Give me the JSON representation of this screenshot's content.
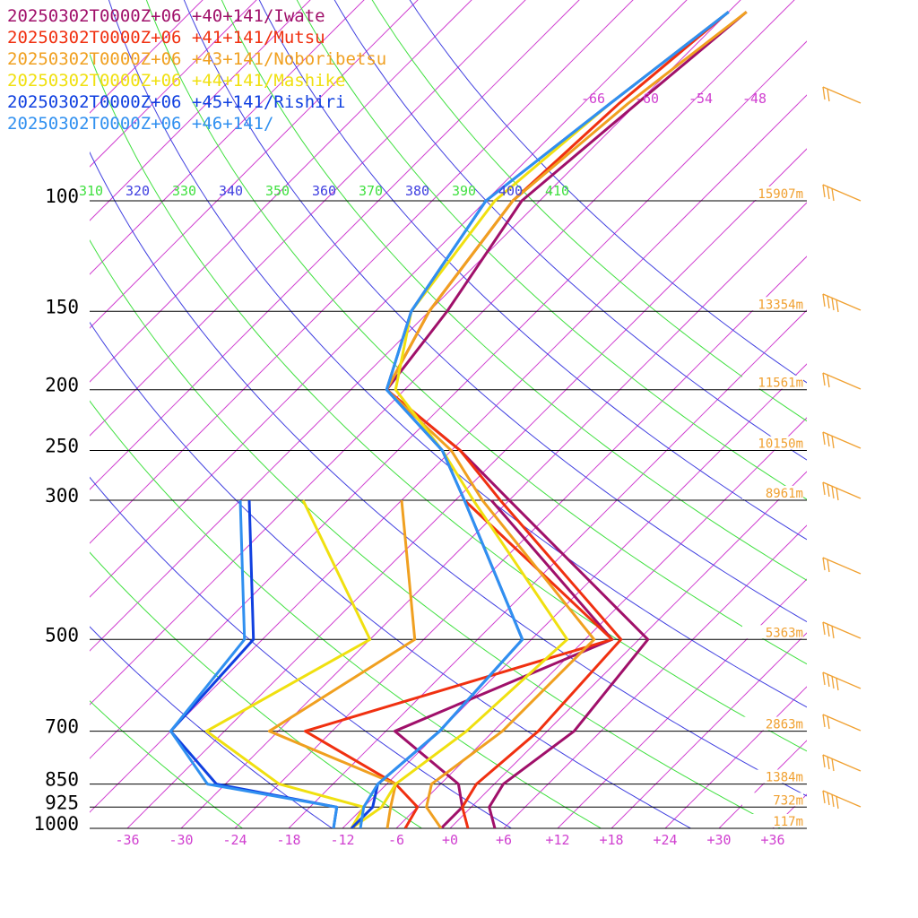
{
  "legend": [
    {
      "text": "20250302T0000Z+06 +40+141/Iwate",
      "color": "#a0106a"
    },
    {
      "text": "20250302T0000Z+06 +41+141/Mutsu",
      "color": "#f03010"
    },
    {
      "text": "20250302T0000Z+06 +43+141/Noboribetsu",
      "color": "#f0a020"
    },
    {
      "text": "20250302T0000Z+06 +44+141/Mashike",
      "color": "#f0e010"
    },
    {
      "text": "20250302T0000Z+06 +45+141/Rishiri",
      "color": "#1040e0"
    },
    {
      "text": "20250302T0000Z+06 +46+141/",
      "color": "#3090f0"
    }
  ],
  "pressure_ticks": [
    "100",
    "150",
    "200",
    "250",
    "300",
    "500",
    "700",
    "850",
    "925",
    "1000"
  ],
  "temperature_ticks": [
    "-36",
    "-30",
    "-24",
    "-18",
    "-12",
    "-6",
    "+0",
    "+6",
    "+12",
    "+18",
    "+24",
    "+30",
    "+36"
  ],
  "isotherm_labels_top": [
    "-66",
    "-60",
    "-54",
    "-48"
  ],
  "theta_labels": [
    "310",
    "320",
    "330",
    "340",
    "350",
    "360",
    "370",
    "380",
    "390",
    "400",
    "410"
  ],
  "height_labels": [
    {
      "p": 100,
      "text": "15907m"
    },
    {
      "p": 150,
      "text": "13354m"
    },
    {
      "p": 200,
      "text": "11561m"
    },
    {
      "p": 250,
      "text": "10150m"
    },
    {
      "p": 300,
      "text": "8961m"
    },
    {
      "p": 500,
      "text": "5363m"
    },
    {
      "p": 700,
      "text": "2863m"
    },
    {
      "p": 850,
      "text": "1384m"
    },
    {
      "p": 925,
      "text": "732m"
    },
    {
      "p": 1000,
      "text": "117m"
    }
  ],
  "colors": {
    "isotherm": "#d040d0",
    "theta_green": "#40e040",
    "theta_blue": "#4040e0",
    "height_label": "#f0a030",
    "wind_barb": "#f0a030"
  },
  "chart_data": {
    "type": "line",
    "title": "",
    "xlabel": "",
    "ylabel": "",
    "x_axis": "temperature (deg C, skewed)",
    "y_axis": "pressure (hPa, log)",
    "xlim": [
      -40,
      40
    ],
    "ylim": [
      1000,
      100
    ],
    "pressure_levels": [
      1000,
      925,
      850,
      700,
      500,
      300,
      250,
      200,
      150,
      100
    ],
    "series": [
      {
        "name": "20250302T0000Z+06 +40+141/Iwate",
        "color": "#a0106a",
        "temperature": [
          [
            1000,
            5
          ],
          [
            925,
            2
          ],
          [
            850,
            1
          ],
          [
            700,
            3
          ],
          [
            500,
            1
          ],
          [
            300,
            -30
          ],
          [
            250,
            -41
          ],
          [
            200,
            -56
          ],
          [
            150,
            -58
          ],
          [
            100,
            -62
          ],
          [
            70,
            -60
          ],
          [
            50,
            -58
          ]
        ],
        "dewpoint": [
          [
            1000,
            -1
          ],
          [
            925,
            -1
          ],
          [
            850,
            -4
          ],
          [
            700,
            -17
          ],
          [
            500,
            -3
          ],
          [
            300,
            -32
          ]
        ]
      },
      {
        "name": "20250302T0000Z+06 +41+141/Mutsu",
        "color": "#f03010",
        "temperature": [
          [
            1000,
            2
          ],
          [
            925,
            -1
          ],
          [
            850,
            -2
          ],
          [
            700,
            -1
          ],
          [
            500,
            -2
          ],
          [
            300,
            -31
          ],
          [
            250,
            -41
          ],
          [
            200,
            -56
          ],
          [
            150,
            -60
          ],
          [
            100,
            -63
          ],
          [
            70,
            -62
          ],
          [
            50,
            -60
          ]
        ],
        "dewpoint": [
          [
            1000,
            -5
          ],
          [
            925,
            -6
          ],
          [
            850,
            -11
          ],
          [
            700,
            -27
          ],
          [
            500,
            -3
          ],
          [
            300,
            -35
          ]
        ]
      },
      {
        "name": "20250302T0000Z+06 +43+141/Noboribetsu",
        "color": "#f0a020",
        "temperature": [
          [
            1000,
            -1
          ],
          [
            925,
            -5
          ],
          [
            850,
            -7
          ],
          [
            700,
            -5
          ],
          [
            500,
            -5
          ],
          [
            300,
            -33
          ],
          [
            250,
            -42
          ],
          [
            200,
            -56
          ],
          [
            150,
            -60
          ],
          [
            100,
            -63
          ],
          [
            70,
            -61
          ],
          [
            50,
            -58
          ]
        ],
        "dewpoint": [
          [
            1000,
            -7
          ],
          [
            925,
            -9
          ],
          [
            850,
            -11
          ],
          [
            700,
            -31
          ],
          [
            500,
            -25
          ],
          [
            300,
            -42
          ]
        ]
      },
      {
        "name": "20250302T0000Z+06 +44+141/Mashike",
        "color": "#f0e010",
        "temperature": [
          [
            1000,
            -11
          ],
          [
            925,
            -10
          ],
          [
            850,
            -11
          ],
          [
            700,
            -9
          ],
          [
            500,
            -8
          ],
          [
            300,
            -34
          ],
          [
            250,
            -43
          ],
          [
            200,
            -55
          ],
          [
            150,
            -62
          ],
          [
            100,
            -65
          ],
          [
            70,
            -63
          ],
          [
            50,
            -60
          ]
        ],
        "dewpoint": [
          [
            1000,
            -11
          ],
          [
            925,
            -12
          ],
          [
            850,
            -24
          ],
          [
            700,
            -38
          ],
          [
            500,
            -30
          ],
          [
            300,
            -53
          ]
        ]
      },
      {
        "name": "20250302T0000Z+06 +45+141/Rishiri",
        "color": "#1040e0",
        "temperature": [
          [
            1000,
            -11
          ],
          [
            925,
            -11
          ],
          [
            850,
            -13
          ],
          [
            700,
            -12
          ],
          [
            500,
            -13
          ],
          [
            300,
            -35
          ],
          [
            250,
            -43
          ],
          [
            200,
            -56
          ],
          [
            150,
            -62
          ],
          [
            100,
            -66
          ],
          [
            70,
            -63
          ],
          [
            50,
            -60
          ]
        ],
        "dewpoint": [
          [
            1000,
            -13
          ],
          [
            925,
            -15
          ],
          [
            850,
            -31
          ],
          [
            700,
            -42
          ],
          [
            500,
            -43
          ],
          [
            300,
            -59
          ]
        ]
      },
      {
        "name": "20250302T0000Z+06 +46+141/",
        "color": "#3090f0",
        "temperature": [
          [
            1000,
            -10
          ],
          [
            925,
            -12
          ],
          [
            850,
            -13
          ],
          [
            700,
            -12
          ],
          [
            500,
            -13
          ],
          [
            300,
            -35
          ],
          [
            250,
            -43
          ],
          [
            200,
            -56
          ],
          [
            150,
            -62
          ],
          [
            100,
            -66
          ],
          [
            70,
            -63
          ],
          [
            50,
            -60
          ]
        ],
        "dewpoint": [
          [
            1000,
            -13
          ],
          [
            925,
            -15
          ],
          [
            850,
            -32
          ],
          [
            700,
            -42
          ],
          [
            500,
            -44
          ],
          [
            300,
            -60
          ]
        ]
      }
    ]
  }
}
